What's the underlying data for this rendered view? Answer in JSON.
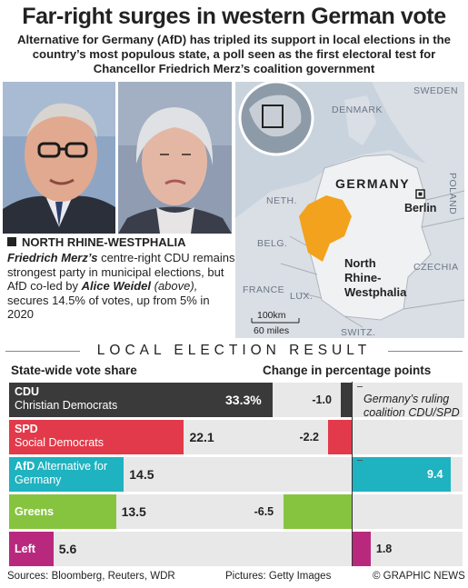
{
  "header": {
    "title": "Far-right surges in western German vote",
    "subtitle": "Alternative for Germany (AfD) has tripled its support in local elections in the country’s most populous state, a poll seen as the first electoral test for Chancellor Friedrich Merz’s coalition government"
  },
  "photos": {
    "left": "Friedrich Merz",
    "right": "Alice Weidel"
  },
  "story": {
    "heading": "NORTH RHINE-WESTPHALIA",
    "merz": "Friedrich Merz’s",
    "text1": " centre-right CDU remains strongest party in municipal elections, but AfD co-led by ",
    "weidel": "Alice Weidel",
    "above": " (above),",
    "text2": " secures 14.5% of votes, up from 5% in 2020"
  },
  "map": {
    "labels": {
      "sweden": "SWEDEN",
      "denmark": "DENMARK",
      "germany": "GERMANY",
      "neth": "NETH.",
      "belg": "BELG.",
      "lux": "LUX.",
      "france": "FRANCE",
      "switz": "SWITZ.",
      "czechia": "CZECHIA",
      "poland": "POLAND",
      "berlin": "Berlin",
      "nrw": "North Rhine-Westphalia",
      "scale_km": "100km",
      "scale_miles": "60 miles"
    },
    "colors": {
      "land": "#dadfe5",
      "sea": "#c9d3de",
      "germany": "#f0f1f3",
      "nrw": "#f3a21d"
    }
  },
  "results": {
    "banner": "LOCAL ELECTION RESULT",
    "left_heading": "State-wide vote share",
    "right_heading": "Change in percentage points",
    "coalition_note": "Germany’s ruling coalition CDU/SPD"
  },
  "chart_data": {
    "type": "bar",
    "title": "LOCAL ELECTION RESULT",
    "vote_share_max": 33.3,
    "change_range": [
      -11,
      11
    ],
    "series": [
      {
        "name": "State-wide vote share",
        "values": [
          33.3,
          22.1,
          14.5,
          13.5,
          5.6
        ]
      },
      {
        "name": "Change in percentage points",
        "values": [
          -1.0,
          -2.2,
          9.4,
          -6.5,
          1.8
        ]
      }
    ],
    "parties": [
      {
        "abbr": "CDU",
        "full": "Christian Democrats",
        "share": 33.3,
        "share_label": "33.3%",
        "change": -1.0,
        "change_label": "-1.0",
        "color": "#3a3a3a",
        "label_inside": true
      },
      {
        "abbr": "SPD",
        "full": "Social Democrats",
        "share": 22.1,
        "share_label": "22.1",
        "change": -2.2,
        "change_label": "-2.2",
        "color": "#e23a4a",
        "label_inside": false
      },
      {
        "abbr": "AfD",
        "full": "Alternative for Germany",
        "share": 14.5,
        "share_label": "14.5",
        "change": 9.4,
        "change_label": "9.4",
        "color": "#1fb2c0",
        "label_inside": false
      },
      {
        "abbr": "Greens",
        "full": "",
        "share": 13.5,
        "share_label": "13.5",
        "change": -6.5,
        "change_label": "-6.5",
        "color": "#86c440",
        "label_inside": false
      },
      {
        "abbr": "Left",
        "full": "",
        "share": 5.6,
        "share_label": "5.6",
        "change": 1.8,
        "change_label": "1.8",
        "color": "#b8297e",
        "label_inside": false
      }
    ]
  },
  "footer": {
    "sources": "Sources: Bloomberg, Reuters, WDR",
    "pictures": "Pictures: Getty Images",
    "credit": "© GRAPHIC NEWS"
  }
}
